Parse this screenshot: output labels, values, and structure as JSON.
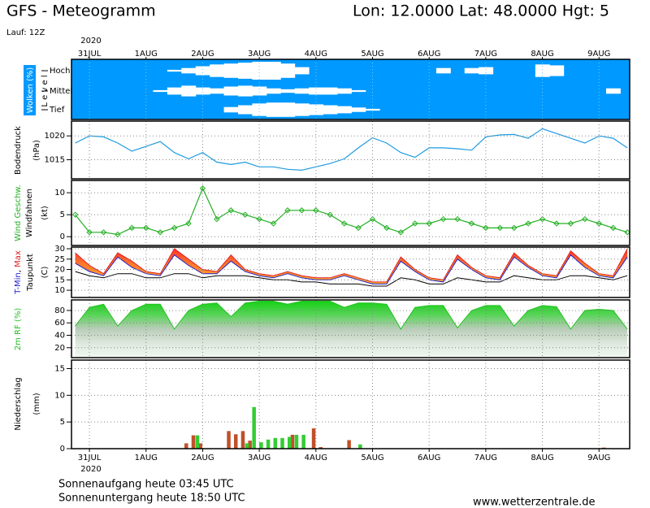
{
  "header": {
    "title": "GFS - Meteogramm",
    "location": "Lon: 12.0000 Lat: 48.0000 Hgt: 5",
    "run": "Lauf: 12Z"
  },
  "time": {
    "year": "2020",
    "x": [
      -6,
      0,
      6,
      12,
      18,
      24,
      30,
      36,
      42,
      48,
      54,
      60,
      66,
      72,
      78,
      84,
      90,
      96,
      102,
      108,
      114,
      120,
      126,
      132,
      138,
      144,
      150,
      156,
      162,
      168,
      174,
      180,
      186,
      192,
      198,
      204,
      210,
      216,
      222,
      228
    ],
    "xlim": [
      -7.6,
      229
    ],
    "xticks": [
      {
        "value": 0,
        "label": "31JUL"
      },
      {
        "value": 24,
        "label": "1AUG"
      },
      {
        "value": 48,
        "label": "2AUG"
      },
      {
        "value": 72,
        "label": "3AUG"
      },
      {
        "value": 96,
        "label": "4AUG"
      },
      {
        "value": 120,
        "label": "5AUG"
      },
      {
        "value": 144,
        "label": "6AUG"
      },
      {
        "value": 168,
        "label": "7AUG"
      },
      {
        "value": 192,
        "label": "8AUG"
      },
      {
        "value": 216,
        "label": "9AUG"
      }
    ]
  },
  "chart_data": [
    {
      "type": "cloud",
      "y_label": "Wolken (%)",
      "level_label": "L e v e l",
      "color": "#0099ff",
      "series": [
        {
          "name": "Hoch",
          "values": [
            100,
            100,
            100,
            100,
            100,
            100,
            100,
            90,
            70,
            50,
            30,
            20,
            10,
            0,
            0,
            20,
            60,
            100,
            100,
            100,
            100,
            100,
            100,
            100,
            100,
            100,
            70,
            100,
            70,
            60,
            100,
            100,
            100,
            30,
            40,
            100,
            100,
            100,
            100,
            100
          ]
        },
        {
          "name": "Mittel",
          "values": [
            100,
            100,
            100,
            100,
            100,
            100,
            90,
            60,
            40,
            60,
            70,
            50,
            40,
            50,
            70,
            80,
            70,
            60,
            60,
            70,
            90,
            100,
            100,
            100,
            100,
            100,
            100,
            100,
            100,
            100,
            100,
            100,
            100,
            100,
            100,
            100,
            100,
            100,
            70,
            100
          ]
        },
        {
          "name": "Tief",
          "values": [
            100,
            100,
            100,
            100,
            100,
            100,
            100,
            100,
            100,
            100,
            100,
            70,
            50,
            30,
            20,
            20,
            30,
            40,
            50,
            60,
            75,
            90,
            100,
            100,
            100,
            100,
            100,
            100,
            100,
            100,
            100,
            100,
            100,
            100,
            100,
            100,
            100,
            100,
            100,
            100
          ]
        }
      ]
    },
    {
      "type": "line",
      "y_label": "Bodendruck",
      "y_unit": "(hPa)",
      "ylim": [
        1011,
        1023.1
      ],
      "yticks": [
        1015,
        1020
      ],
      "grid": true,
      "series": [
        {
          "color": "#1e9be0",
          "values": [
            1018.5,
            1020,
            1019.8,
            1018.5,
            1016.8,
            1017.8,
            1018.8,
            1016.5,
            1015.2,
            1016.5,
            1014.5,
            1014,
            1014.5,
            1013.5,
            1013.5,
            1013,
            1012.8,
            1013.5,
            1014.2,
            1015.2,
            1017.5,
            1019.6,
            1018.5,
            1016.5,
            1015.5,
            1017.5,
            1017.5,
            1017.3,
            1017,
            1019.8,
            1020.2,
            1020.3,
            1019.5,
            1021.5,
            1020.5,
            1019.5,
            1018.5,
            1020,
            1019.5,
            1017.5
          ]
        }
      ]
    },
    {
      "type": "wind",
      "y_label": "Windfahnen",
      "y_unit": "(kt)",
      "ylim": [
        -2,
        12.8
      ],
      "yticks": [
        0,
        5,
        10
      ],
      "grid": true,
      "series": [
        {
          "name": "Wind Geschw.",
          "color": "#22b022",
          "values": [
            5,
            1,
            1,
            0.5,
            2,
            2,
            1,
            2,
            3,
            11,
            4,
            6,
            5,
            4,
            3,
            6,
            6,
            6,
            5,
            3,
            2,
            4,
            2,
            1,
            3,
            3,
            4,
            4,
            3,
            2,
            2,
            2,
            3,
            4,
            3,
            3,
            4,
            3,
            2,
            1
          ]
        }
      ]
    },
    {
      "type": "temperature",
      "separator": ",",
      "y_unit": "(C)",
      "ylim": [
        6.5,
        30.8
      ],
      "yticks": [
        10,
        15,
        20,
        25,
        30
      ],
      "grid": true,
      "series": [
        {
          "name": "T-Min",
          "color": "#2020d0",
          "values": [
            23,
            19,
            17,
            26,
            21,
            18,
            17,
            27,
            22,
            18,
            18,
            24,
            19,
            17,
            16,
            18,
            16,
            15,
            15,
            17,
            15,
            13,
            13,
            24,
            19,
            15,
            14,
            25,
            20,
            16,
            15,
            26,
            21,
            17,
            16,
            27,
            21,
            17,
            16,
            26
          ]
        },
        {
          "name": "Max",
          "color": "#e02020",
          "values": [
            28,
            22,
            18,
            28,
            24,
            19,
            18,
            30,
            25,
            20,
            19,
            27,
            20,
            18,
            17,
            19,
            17,
            16,
            16,
            18,
            16,
            14,
            14,
            26,
            20,
            16,
            15,
            27,
            21,
            17,
            16,
            28,
            22,
            18,
            17,
            29,
            23,
            18,
            17,
            30
          ]
        },
        {
          "name": "Taupunkt",
          "color": "#000000",
          "values": [
            19,
            17,
            16,
            18,
            18,
            16,
            16,
            18,
            18,
            16,
            17,
            17,
            17,
            16,
            15,
            15,
            14,
            14,
            13,
            13,
            13,
            12,
            12,
            16,
            15,
            13,
            13,
            16,
            15,
            14,
            14,
            17,
            16,
            15,
            15,
            17,
            17,
            16,
            15,
            17
          ]
        }
      ]
    },
    {
      "type": "area",
      "ylim": [
        4,
        97
      ],
      "yticks": [
        20,
        40,
        60,
        80
      ],
      "grid": true,
      "series": [
        {
          "name": "2m RF (%)",
          "color": "#22c022",
          "values": [
            55,
            85,
            90,
            55,
            80,
            90,
            90,
            50,
            80,
            90,
            92,
            70,
            92,
            95,
            95,
            90,
            95,
            95,
            95,
            85,
            92,
            92,
            90,
            50,
            85,
            88,
            88,
            52,
            80,
            88,
            88,
            55,
            80,
            88,
            86,
            50,
            80,
            82,
            80,
            50
          ]
        }
      ]
    },
    {
      "type": "bar",
      "y_label": "Niederschlag",
      "y_unit": "(mm)",
      "ylim": [
        0,
        16.6
      ],
      "yticks": [
        0,
        5,
        10,
        15
      ],
      "grid": true,
      "x": [
        42,
        45,
        48,
        60,
        63,
        66,
        69,
        72,
        75,
        78,
        81,
        84,
        87,
        90,
        96,
        99,
        111,
        114,
        219
      ],
      "series": [
        {
          "color": "#c0502a",
          "values": [
            1,
            2.5,
            1,
            3.3,
            2.7,
            3.3,
            1.5,
            0,
            0,
            0,
            0,
            0,
            2.6,
            0,
            3.8,
            0.3,
            1.6,
            0,
            0.2
          ]
        },
        {
          "color": "#33cc33",
          "values": [
            0,
            2.5,
            0,
            0,
            0,
            1,
            7.8,
            1.2,
            1.7,
            2,
            2,
            2.2,
            2.6,
            2.6,
            0,
            0,
            0,
            0.8,
            0
          ]
        }
      ]
    }
  ],
  "footer": {
    "sunrise": "Sonnenaufgang heute 03:45 UTC",
    "sunset": "Sonnenuntergang heute 18:50 UTC",
    "site": "www.wetterzentrale.de"
  }
}
